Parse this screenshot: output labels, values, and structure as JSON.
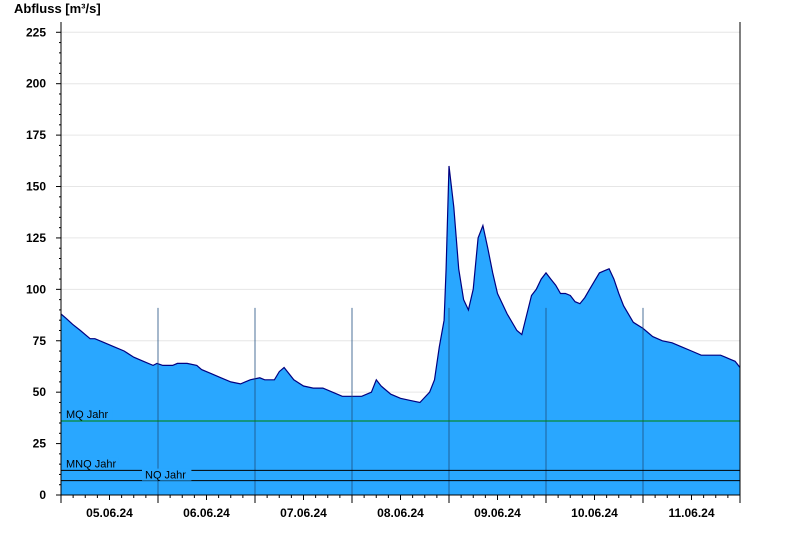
{
  "chart_data": {
    "type": "area",
    "title": "",
    "ylabel": "Abfluss [m³/s]",
    "xlabel": "",
    "ylim": [
      0,
      230
    ],
    "yticks": [
      0,
      25,
      50,
      75,
      100,
      125,
      150,
      175,
      200,
      225
    ],
    "xlim": [
      0,
      7
    ],
    "day_labels": [
      "05.06.24",
      "06.06.24",
      "07.06.24",
      "08.06.24",
      "09.06.24",
      "10.06.24",
      "11.06.24"
    ],
    "grid": true,
    "colors": {
      "fill": "#29a7ff",
      "line": "#000080",
      "mq": "#008000",
      "mnq": "#000000",
      "nq": "#000000"
    },
    "reference_lines": [
      {
        "label": "MQ Jahr",
        "value": 36
      },
      {
        "label": "MNQ Jahr",
        "value": 12
      },
      {
        "label": "NQ Jahr",
        "value": 7
      }
    ],
    "series": [
      {
        "x": [
          0,
          0.05,
          0.12,
          0.2,
          0.3,
          0.35,
          0.45,
          0.55,
          0.65,
          0.75,
          0.85,
          0.95,
          0.99,
          1.05,
          1.15,
          1.2,
          1.3,
          1.4,
          1.45,
          1.55,
          1.65,
          1.75,
          1.85,
          1.95,
          2.05,
          2.1,
          2.2,
          2.25,
          2.3,
          2.4,
          2.5,
          2.6,
          2.7,
          2.8,
          2.9,
          3.0,
          3.1,
          3.2,
          3.25,
          3.3,
          3.4,
          3.5,
          3.6,
          3.7,
          3.8,
          3.85,
          3.9,
          3.95,
          3.97,
          4.0,
          4.05,
          4.1,
          4.15,
          4.2,
          4.25,
          4.3,
          4.35,
          4.4,
          4.45,
          4.5,
          4.6,
          4.7,
          4.75,
          4.85,
          4.9,
          4.95,
          5.0,
          5.05,
          5.1,
          5.15,
          5.2,
          5.25,
          5.3,
          5.35,
          5.4,
          5.45,
          5.5,
          5.55,
          5.6,
          5.65,
          5.7,
          5.75,
          5.8,
          5.9,
          6.0,
          6.1,
          6.2,
          6.3,
          6.4,
          6.5,
          6.6,
          6.7,
          6.8,
          6.85,
          6.9,
          6.95,
          7.0
        ],
        "values": [
          88,
          86,
          83,
          80,
          76,
          76,
          74,
          72,
          70,
          67,
          65,
          63,
          64,
          63,
          63,
          64,
          64,
          63,
          61,
          59,
          57,
          55,
          54,
          56,
          57,
          56,
          56,
          60,
          62,
          56,
          53,
          52,
          52,
          50,
          48,
          48,
          48,
          50,
          56,
          53,
          49,
          47,
          46,
          45,
          50,
          56,
          72,
          85,
          110,
          160,
          140,
          110,
          95,
          90,
          100,
          125,
          131,
          120,
          108,
          98,
          88,
          80,
          78,
          97,
          100,
          105,
          108,
          105,
          102,
          98,
          98,
          97,
          94,
          93,
          96,
          100,
          104,
          108,
          109,
          110,
          105,
          98,
          92,
          84,
          81,
          77,
          75,
          74,
          72,
          70,
          68,
          68,
          68,
          67,
          66,
          65,
          62
        ]
      }
    ]
  }
}
